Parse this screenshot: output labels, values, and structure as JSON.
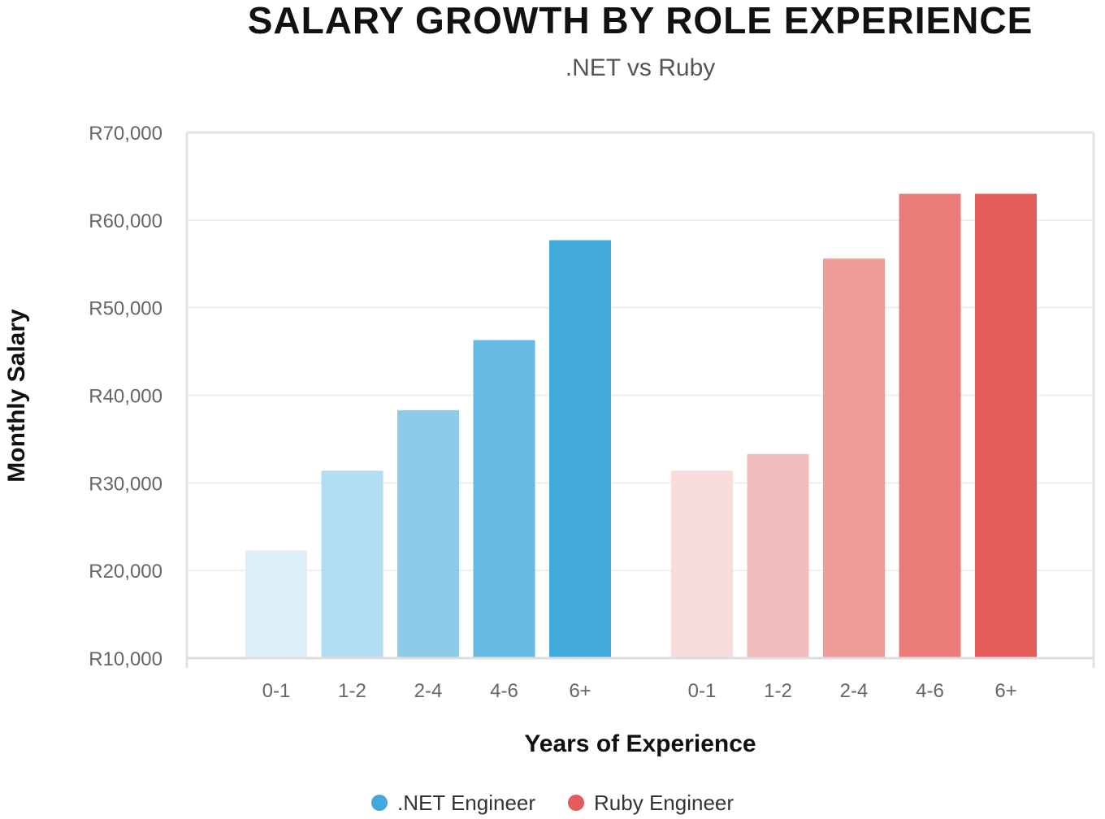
{
  "chart_data": {
    "type": "bar",
    "title": "SALARY GROWTH BY ROLE EXPERIENCE",
    "subtitle": ".NET vs Ruby",
    "xlabel": "Years of Experience",
    "ylabel": "Monthly Salary",
    "ylim": [
      10000,
      70000
    ],
    "y_ticks": [
      {
        "value": 10000,
        "label": "R10,000"
      },
      {
        "value": 20000,
        "label": "R20,000"
      },
      {
        "value": 30000,
        "label": "R30,000"
      },
      {
        "value": 40000,
        "label": "R40,000"
      },
      {
        "value": 50000,
        "label": "R50,000"
      },
      {
        "value": 60000,
        "label": "R60,000"
      },
      {
        "value": 70000,
        "label": "R70,000"
      }
    ],
    "grid": true,
    "legend_position": "bottom",
    "series": [
      {
        "name": ".NET Engineer",
        "color": "#42aadb",
        "bar_colors": [
          "#dbeef9",
          "#b3ddf2",
          "#8ecbe8",
          "#66b9e2",
          "#42aadb"
        ],
        "categories": [
          "0-1",
          "1-2",
          "2-4",
          "4-6",
          "6+"
        ],
        "values": [
          22300,
          31400,
          38300,
          46300,
          57700
        ]
      },
      {
        "name": "Ruby Engineer",
        "color": "#e45b5b",
        "bar_colors": [
          "#f8dcdc",
          "#f3bdbd",
          "#ee9c98",
          "#ea7c78",
          "#e45b5b"
        ],
        "categories": [
          "0-1",
          "1-2",
          "2-4",
          "4-6",
          "6+"
        ],
        "values": [
          31400,
          33300,
          55600,
          63000,
          63000
        ]
      }
    ]
  }
}
